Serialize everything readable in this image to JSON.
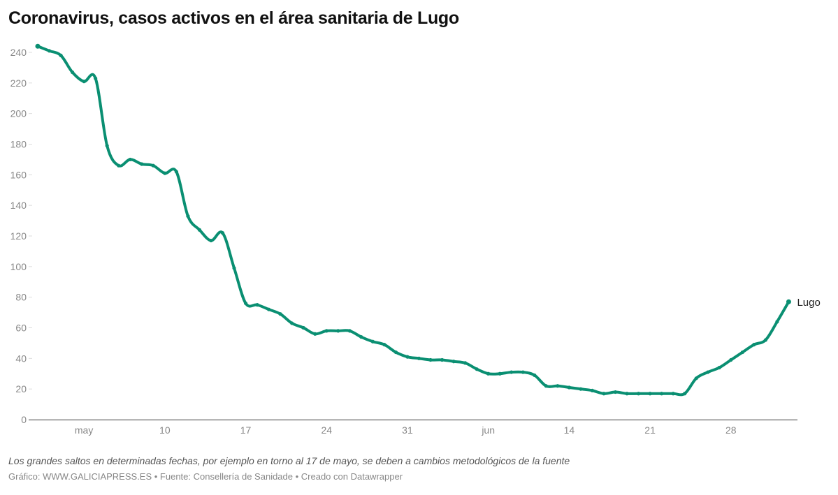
{
  "chart_data": {
    "type": "line",
    "title": "Coronavirus, casos activos en el área sanitaria de Lugo",
    "xlabel": "",
    "ylabel": "",
    "ylim": [
      0,
      240
    ],
    "yticks": [
      0,
      20,
      40,
      60,
      80,
      100,
      120,
      140,
      160,
      180,
      200,
      220,
      240
    ],
    "xticks": [
      {
        "date": "05-03",
        "label": "may"
      },
      {
        "date": "05-10",
        "label": "10"
      },
      {
        "date": "05-17",
        "label": "17"
      },
      {
        "date": "05-24",
        "label": "24"
      },
      {
        "date": "05-31",
        "label": "31"
      },
      {
        "date": "06-07",
        "label": "jun"
      },
      {
        "date": "06-14",
        "label": "14"
      },
      {
        "date": "06-21",
        "label": "21"
      },
      {
        "date": "06-28",
        "label": "28"
      }
    ],
    "grid": false,
    "color": "#0a8f72",
    "series": [
      {
        "name": "Lugo",
        "x": [
          "04-29",
          "04-30",
          "05-01",
          "05-02",
          "05-03",
          "05-04",
          "05-05",
          "05-06",
          "05-07",
          "05-08",
          "05-09",
          "05-10",
          "05-11",
          "05-12",
          "05-13",
          "05-14",
          "05-15",
          "05-16",
          "05-17",
          "05-18",
          "05-19",
          "05-20",
          "05-21",
          "05-22",
          "05-23",
          "05-24",
          "05-25",
          "05-26",
          "05-27",
          "05-28",
          "05-29",
          "05-30",
          "05-31",
          "06-01",
          "06-02",
          "06-03",
          "06-04",
          "06-05",
          "06-06",
          "06-07",
          "06-08",
          "06-09",
          "06-10",
          "06-11",
          "06-12",
          "06-13",
          "06-14",
          "06-15",
          "06-16",
          "06-17",
          "06-18",
          "06-19",
          "06-20",
          "06-21",
          "06-22",
          "06-23",
          "06-24",
          "06-25",
          "06-26",
          "06-27",
          "06-28",
          "06-29",
          "06-30",
          "07-01",
          "07-02",
          "07-03"
        ],
        "values": [
          244,
          241,
          238,
          227,
          221,
          223,
          179,
          166,
          170,
          167,
          166,
          161,
          162,
          133,
          124,
          117,
          122,
          99,
          76,
          75,
          72,
          69,
          63,
          60,
          56,
          58,
          58,
          58,
          54,
          51,
          49,
          44,
          41,
          40,
          39,
          39,
          38,
          37,
          33,
          30,
          30,
          31,
          31,
          29,
          22,
          22,
          21,
          20,
          19,
          17,
          18,
          17,
          17,
          17,
          17,
          17,
          17,
          27,
          31,
          34,
          39,
          44,
          49,
          52,
          64,
          77
        ]
      }
    ]
  },
  "notes": "Los grandes saltos en determinadas fechas, por ejemplo en torno al 17 de mayo, se deben a cambios metodológicos de la fuente",
  "footer": "Gráfico: WWW.GALICIAPRESS.ES • Fuente: Consellería de Sanidade • Creado con Datawrapper"
}
